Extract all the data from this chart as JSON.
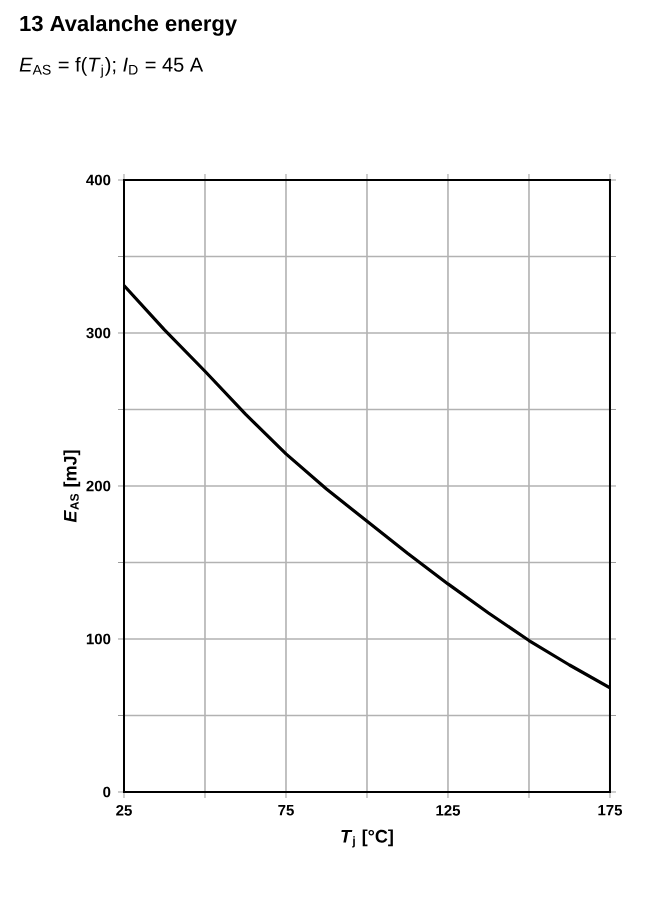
{
  "chart_data": {
    "type": "line",
    "title": "13 Avalanche energy",
    "subtitle": "*E*$_{AS}$ = f(*T*$_{j}$); *I*$_{D}$ = 45 A",
    "xlabel": "*T*$_{j}$ [°C]",
    "ylabel": "*E*$_{AS}$ [mJ]",
    "x": [
      25,
      37.5,
      50,
      62.5,
      75,
      87.5,
      100,
      112.5,
      125,
      137.5,
      150,
      162.5,
      175
    ],
    "series": [
      {
        "color": "#000000",
        "values": [
          331,
          302,
          275,
          247,
          221,
          198,
          177,
          156,
          136,
          117,
          99,
          83,
          68
        ]
      }
    ],
    "xlim": [
      25,
      175
    ],
    "ylim": [
      0,
      400
    ],
    "xticks": [
      25,
      {
        "value": 50,
        "label": null
      },
      75,
      {
        "value": 100,
        "label": null
      },
      125,
      {
        "value": 150,
        "label": null
      },
      175
    ],
    "yticks": [
      0,
      {
        "value": 50,
        "label": null
      },
      100,
      {
        "value": 150,
        "label": null
      },
      200,
      {
        "value": 250,
        "label": null
      },
      300,
      {
        "value": 350,
        "label": null
      },
      400
    ],
    "grid": true,
    "marker": "none",
    "line_style": "solid"
  }
}
